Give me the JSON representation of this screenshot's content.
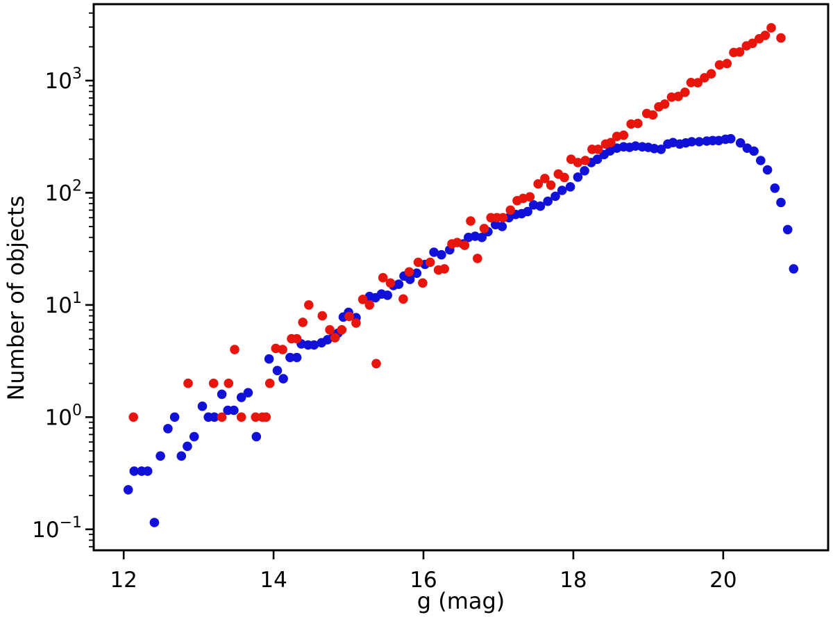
{
  "figure": {
    "background_color": "#ffffff",
    "frame_color": "#000000"
  },
  "chart_data": {
    "type": "scatter",
    "title": "",
    "xlabel": "g (mag)",
    "ylabel": "Number of objects",
    "xscale": "linear",
    "yscale": "log",
    "grid": false,
    "legend": null,
    "xlim": [
      11.6,
      21.4
    ],
    "ylim": [
      0.065,
      4800
    ],
    "xticks": [
      {
        "value": 12,
        "label": "12"
      },
      {
        "value": 14,
        "label": "14"
      },
      {
        "value": 16,
        "label": "16"
      },
      {
        "value": 18,
        "label": "18"
      },
      {
        "value": 20,
        "label": "20"
      }
    ],
    "yticks": [
      {
        "value": 0.1,
        "base": "10",
        "exp": "−1"
      },
      {
        "value": 1,
        "base": "10",
        "exp": "0"
      },
      {
        "value": 10,
        "base": "10",
        "exp": "1"
      },
      {
        "value": 100,
        "base": "10",
        "exp": "2"
      },
      {
        "value": 1000,
        "base": "10",
        "exp": "3"
      }
    ],
    "marker": {
      "shape": "circle",
      "radius": 6.8
    },
    "series": [
      {
        "name": "blue-sample",
        "color": "#1010d8",
        "points": [
          [
            12.06,
            0.225
          ],
          [
            12.14,
            0.33
          ],
          [
            12.24,
            0.33
          ],
          [
            12.32,
            0.33
          ],
          [
            12.41,
            0.115
          ],
          [
            12.49,
            0.45
          ],
          [
            12.59,
            0.79
          ],
          [
            12.68,
            1.0
          ],
          [
            12.77,
            0.45
          ],
          [
            12.85,
            0.55
          ],
          [
            12.94,
            0.67
          ],
          [
            13.05,
            1.25
          ],
          [
            13.13,
            1.0
          ],
          [
            13.21,
            1.0
          ],
          [
            13.31,
            1.6
          ],
          [
            13.39,
            1.15
          ],
          [
            13.47,
            1.15
          ],
          [
            13.57,
            1.5
          ],
          [
            13.66,
            1.65
          ],
          [
            13.77,
            0.67
          ],
          [
            13.94,
            3.3
          ],
          [
            14.05,
            2.6
          ],
          [
            14.13,
            2.2
          ],
          [
            14.22,
            3.4
          ],
          [
            14.31,
            3.4
          ],
          [
            14.37,
            4.5
          ],
          [
            14.46,
            4.4
          ],
          [
            14.54,
            4.4
          ],
          [
            14.64,
            4.6
          ],
          [
            14.72,
            4.9
          ],
          [
            14.8,
            5.2
          ],
          [
            14.86,
            5.6
          ],
          [
            14.93,
            7.8
          ],
          [
            15.0,
            8.6
          ],
          [
            15.1,
            7.7
          ],
          [
            15.28,
            11.9
          ],
          [
            15.36,
            11.6
          ],
          [
            15.44,
            12.5
          ],
          [
            15.52,
            12.2
          ],
          [
            15.6,
            14.9
          ],
          [
            15.67,
            15.3
          ],
          [
            15.74,
            18.1
          ],
          [
            15.82,
            16.9
          ],
          [
            15.91,
            19.2
          ],
          [
            16.02,
            23
          ],
          [
            16.14,
            29.5
          ],
          [
            16.24,
            28
          ],
          [
            16.35,
            31
          ],
          [
            16.53,
            35
          ],
          [
            16.6,
            40
          ],
          [
            16.69,
            41
          ],
          [
            16.78,
            40
          ],
          [
            16.86,
            45
          ],
          [
            16.96,
            52
          ],
          [
            17.05,
            50
          ],
          [
            17.14,
            60
          ],
          [
            17.23,
            64
          ],
          [
            17.31,
            65
          ],
          [
            17.39,
            68
          ],
          [
            17.47,
            78
          ],
          [
            17.56,
            76
          ],
          [
            17.66,
            84
          ],
          [
            17.76,
            93
          ],
          [
            17.85,
            105
          ],
          [
            17.96,
            113
          ],
          [
            18.06,
            138
          ],
          [
            18.15,
            157
          ],
          [
            18.24,
            186
          ],
          [
            18.32,
            199
          ],
          [
            18.41,
            219
          ],
          [
            18.49,
            236
          ],
          [
            18.58,
            250
          ],
          [
            18.67,
            257
          ],
          [
            18.75,
            254
          ],
          [
            18.83,
            261
          ],
          [
            18.92,
            257
          ],
          [
            19.0,
            254
          ],
          [
            19.08,
            248
          ],
          [
            19.17,
            244
          ],
          [
            19.26,
            272
          ],
          [
            19.33,
            280
          ],
          [
            19.42,
            272
          ],
          [
            19.5,
            278
          ],
          [
            19.58,
            285
          ],
          [
            19.68,
            285
          ],
          [
            19.78,
            289
          ],
          [
            19.86,
            292
          ],
          [
            19.94,
            292
          ],
          [
            20.03,
            300
          ],
          [
            20.1,
            303
          ],
          [
            20.23,
            278
          ],
          [
            20.32,
            250
          ],
          [
            20.41,
            235
          ],
          [
            20.5,
            194
          ],
          [
            20.59,
            160
          ],
          [
            20.69,
            110
          ],
          [
            20.77,
            82
          ],
          [
            20.86,
            47
          ],
          [
            20.94,
            21
          ]
        ]
      },
      {
        "name": "red-sample",
        "color": "#e8150d",
        "points": [
          [
            12.13,
            1.0
          ],
          [
            12.86,
            2.0
          ],
          [
            13.2,
            2.0
          ],
          [
            13.31,
            1.0
          ],
          [
            13.4,
            2.0
          ],
          [
            13.48,
            4.0
          ],
          [
            13.57,
            1.0
          ],
          [
            13.76,
            1.0
          ],
          [
            13.85,
            1.0
          ],
          [
            13.9,
            1.0
          ],
          [
            13.95,
            2.0
          ],
          [
            14.03,
            4.1
          ],
          [
            14.12,
            4.0
          ],
          [
            14.24,
            5.0
          ],
          [
            14.31,
            5.0
          ],
          [
            14.39,
            7.0
          ],
          [
            14.47,
            10.0
          ],
          [
            14.65,
            8.0
          ],
          [
            14.75,
            6.0
          ],
          [
            14.82,
            5.1
          ],
          [
            14.91,
            6.0
          ],
          [
            15.01,
            7.9
          ],
          [
            15.1,
            6.9
          ],
          [
            15.19,
            11.2
          ],
          [
            15.28,
            10.0
          ],
          [
            15.37,
            3.0
          ],
          [
            15.46,
            17.5
          ],
          [
            15.56,
            15.7
          ],
          [
            15.73,
            11.3
          ],
          [
            15.81,
            19.7
          ],
          [
            15.93,
            24
          ],
          [
            15.99,
            15.7
          ],
          [
            16.09,
            24
          ],
          [
            16.2,
            20.5
          ],
          [
            16.28,
            21
          ],
          [
            16.38,
            35
          ],
          [
            16.45,
            36
          ],
          [
            16.55,
            34
          ],
          [
            16.63,
            56
          ],
          [
            16.72,
            26
          ],
          [
            16.81,
            48
          ],
          [
            16.9,
            60
          ],
          [
            16.98,
            60
          ],
          [
            17.06,
            60
          ],
          [
            17.16,
            70
          ],
          [
            17.25,
            85
          ],
          [
            17.33,
            89
          ],
          [
            17.42,
            92
          ],
          [
            17.53,
            120
          ],
          [
            17.62,
            134
          ],
          [
            17.7,
            117
          ],
          [
            17.8,
            147
          ],
          [
            17.88,
            137
          ],
          [
            17.97,
            199
          ],
          [
            18.06,
            186
          ],
          [
            18.16,
            194
          ],
          [
            18.25,
            244
          ],
          [
            18.33,
            244
          ],
          [
            18.43,
            272
          ],
          [
            18.5,
            280
          ],
          [
            18.58,
            318
          ],
          [
            18.67,
            326
          ],
          [
            18.77,
            410
          ],
          [
            18.86,
            415
          ],
          [
            18.98,
            509
          ],
          [
            19.06,
            494
          ],
          [
            19.14,
            583
          ],
          [
            19.22,
            617
          ],
          [
            19.31,
            712
          ],
          [
            19.4,
            722
          ],
          [
            19.49,
            787
          ],
          [
            19.57,
            960
          ],
          [
            19.66,
            957
          ],
          [
            19.75,
            1060
          ],
          [
            19.84,
            1150
          ],
          [
            19.95,
            1380
          ],
          [
            20.05,
            1420
          ],
          [
            20.14,
            1780
          ],
          [
            20.22,
            1800
          ],
          [
            20.31,
            2040
          ],
          [
            20.39,
            2150
          ],
          [
            20.48,
            2360
          ],
          [
            20.56,
            2530
          ],
          [
            20.64,
            2950
          ],
          [
            20.77,
            2400
          ]
        ]
      }
    ]
  }
}
